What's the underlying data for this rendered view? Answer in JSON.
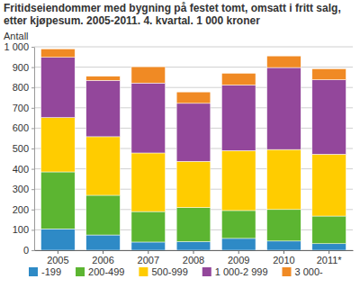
{
  "chart_data": {
    "type": "bar",
    "stacked": true,
    "grid": true,
    "legend": "bottom",
    "title": "Fritidseiendommer med bygning på festet tomt, omsatt i fritt salg, etter kjøpesum. 2005-2011. 4. kvartal. 1 000 kroner",
    "y_label": "Antall",
    "categories": [
      "2005",
      "2006",
      "2007",
      "2008",
      "2009",
      "2010",
      "2011*"
    ],
    "series": [
      {
        "name": "-199",
        "color": "#2e8ac6",
        "values": [
          105,
          75,
          40,
          42,
          58,
          45,
          32
        ]
      },
      {
        "name": "200-499",
        "color": "#5cb531",
        "values": [
          280,
          195,
          150,
          168,
          137,
          155,
          136
        ]
      },
      {
        "name": "500-999",
        "color": "#ffcc00",
        "values": [
          267,
          288,
          288,
          227,
          295,
          295,
          304
        ]
      },
      {
        "name": "1 000-2 999",
        "color": "#93479b",
        "values": [
          296,
          277,
          344,
          285,
          322,
          403,
          366
        ]
      },
      {
        "name": "3 000-",
        "color": "#f08a24",
        "values": [
          42,
          20,
          80,
          56,
          58,
          57,
          54
        ]
      }
    ],
    "ylim": [
      0,
      1000
    ],
    "yticks": [
      0,
      100,
      200,
      300,
      400,
      500,
      600,
      700,
      800,
      900,
      {
        "value": 1000,
        "label": "1 000"
      }
    ]
  }
}
